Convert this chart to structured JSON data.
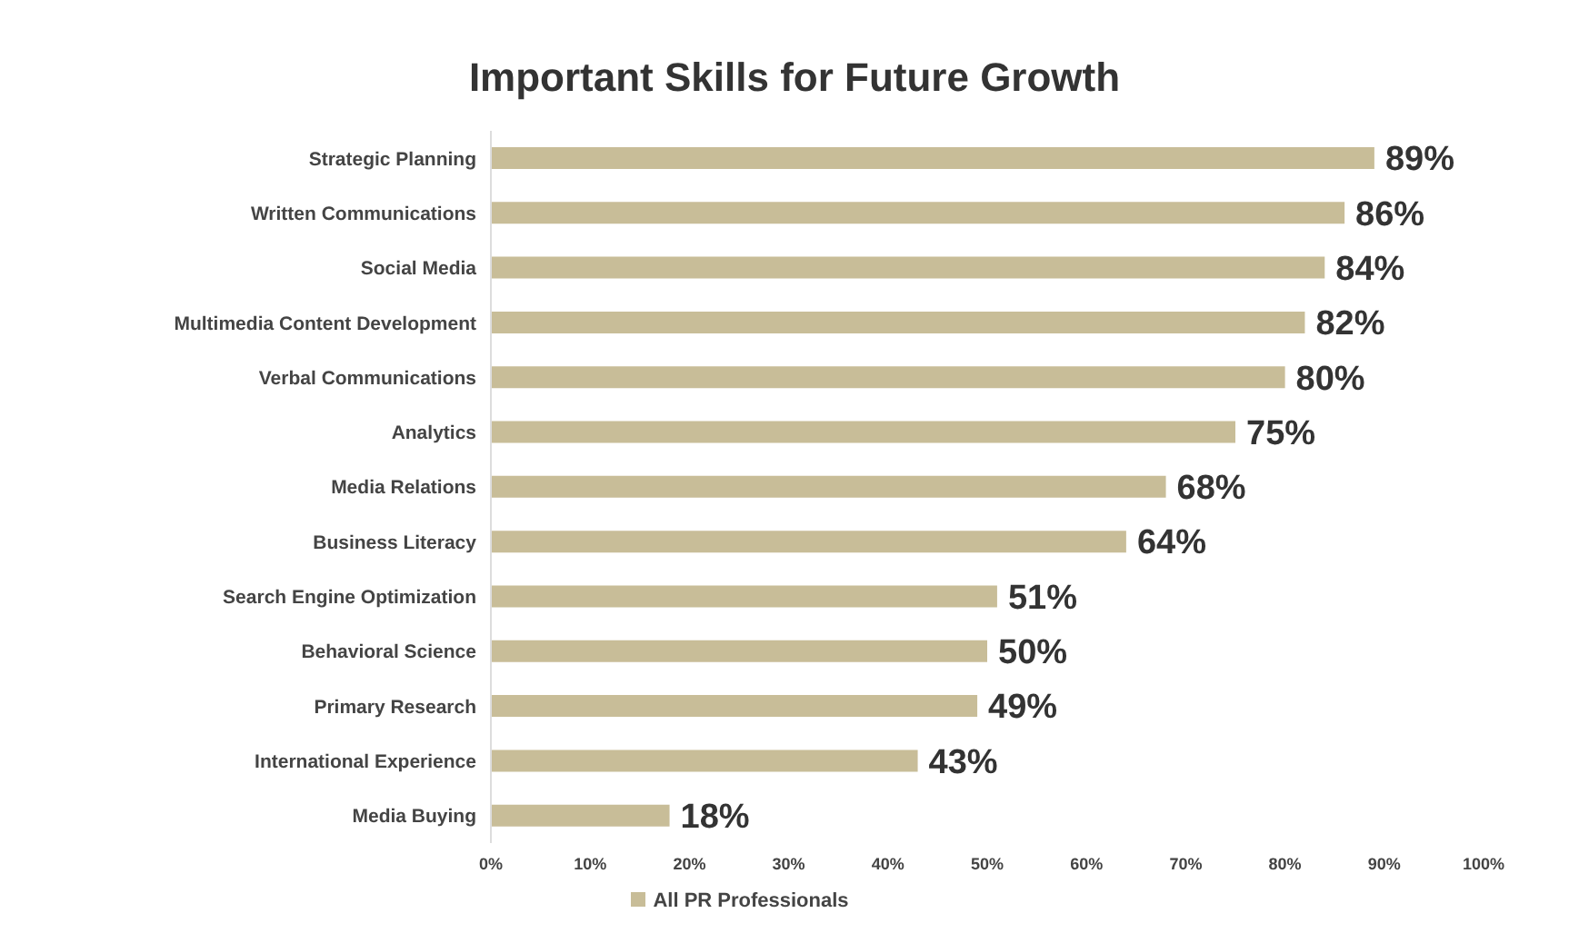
{
  "chart_data": {
    "type": "bar",
    "orientation": "horizontal",
    "title": "Important Skills for Future Growth",
    "categories": [
      "Strategic Planning",
      "Written Communications",
      "Social Media",
      "Multimedia Content Development",
      "Verbal Communications",
      "Analytics",
      "Media Relations",
      "Business Literacy",
      "Search Engine Optimization",
      "Behavioral Science",
      "Primary Research",
      "International Experience",
      "Media Buying"
    ],
    "series": [
      {
        "name": "All PR Professionals",
        "color": "#c8bd98",
        "values": [
          89,
          86,
          84,
          82,
          80,
          75,
          68,
          64,
          51,
          50,
          49,
          43,
          18
        ],
        "value_labels": [
          "89%",
          "86%",
          "84%",
          "82%",
          "80%",
          "75%",
          "68%",
          "64%",
          "51%",
          "50%",
          "49%",
          "43%",
          "18%"
        ]
      }
    ],
    "xlim": [
      0,
      100
    ],
    "xticks": [
      {
        "value": 0,
        "label": "0%"
      },
      {
        "value": 10,
        "label": "10%"
      },
      {
        "value": 20,
        "label": "20%"
      },
      {
        "value": 30,
        "label": "30%"
      },
      {
        "value": 40,
        "label": "40%"
      },
      {
        "value": 50,
        "label": "50%"
      },
      {
        "value": 60,
        "label": "60%"
      },
      {
        "value": 70,
        "label": "70%"
      },
      {
        "value": 80,
        "label": "80%"
      },
      {
        "value": 90,
        "label": "90%"
      },
      {
        "value": 100,
        "label": "100%"
      }
    ],
    "grid": false,
    "legend": "bottom"
  }
}
